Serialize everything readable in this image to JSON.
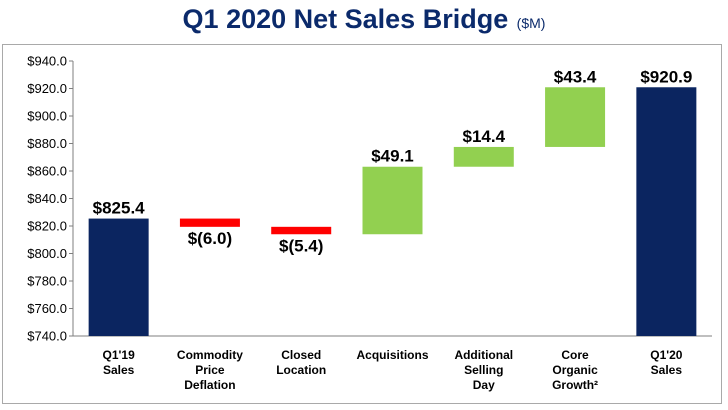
{
  "title": "Q1 2020 Net Sales Bridge",
  "title_unit": "($M)",
  "chart_data": {
    "type": "waterfall",
    "ylim": [
      740,
      940
    ],
    "ytick_step": 20,
    "ytick_labels": [
      "$740.0",
      "$760.0",
      "$780.0",
      "$800.0",
      "$820.0",
      "$840.0",
      "$860.0",
      "$880.0",
      "$900.0",
      "$920.0",
      "$940.0"
    ],
    "grid": false,
    "categories": [
      {
        "lines": [
          "Q1'19",
          "Sales"
        ]
      },
      {
        "lines": [
          "Commodity",
          "Price",
          "Deflation"
        ]
      },
      {
        "lines": [
          "Closed",
          "Location"
        ]
      },
      {
        "lines": [
          "Acquisitions"
        ]
      },
      {
        "lines": [
          "Additional",
          "Selling",
          "Day"
        ]
      },
      {
        "lines": [
          "Core",
          "Organic",
          "Growth²"
        ]
      },
      {
        "lines": [
          "Q1'20",
          "Sales"
        ]
      }
    ],
    "bars": [
      {
        "kind": "total",
        "start": 740,
        "end": 825.4,
        "label": "$825.4",
        "color": "#0b2560"
      },
      {
        "kind": "decrease",
        "start": 825.4,
        "end": 819.4,
        "label": "$(6.0)",
        "color": "#ff0000"
      },
      {
        "kind": "decrease",
        "start": 819.4,
        "end": 814.0,
        "label": "$(5.4)",
        "color": "#ff0000"
      },
      {
        "kind": "increase",
        "start": 814.0,
        "end": 863.1,
        "label": "$49.1",
        "color": "#92d050"
      },
      {
        "kind": "increase",
        "start": 863.1,
        "end": 877.5,
        "label": "$14.4",
        "color": "#92d050"
      },
      {
        "kind": "increase",
        "start": 877.5,
        "end": 920.9,
        "label": "$43.4",
        "color": "#92d050"
      },
      {
        "kind": "total",
        "start": 740,
        "end": 920.9,
        "label": "$920.9",
        "color": "#0b2560"
      }
    ]
  }
}
